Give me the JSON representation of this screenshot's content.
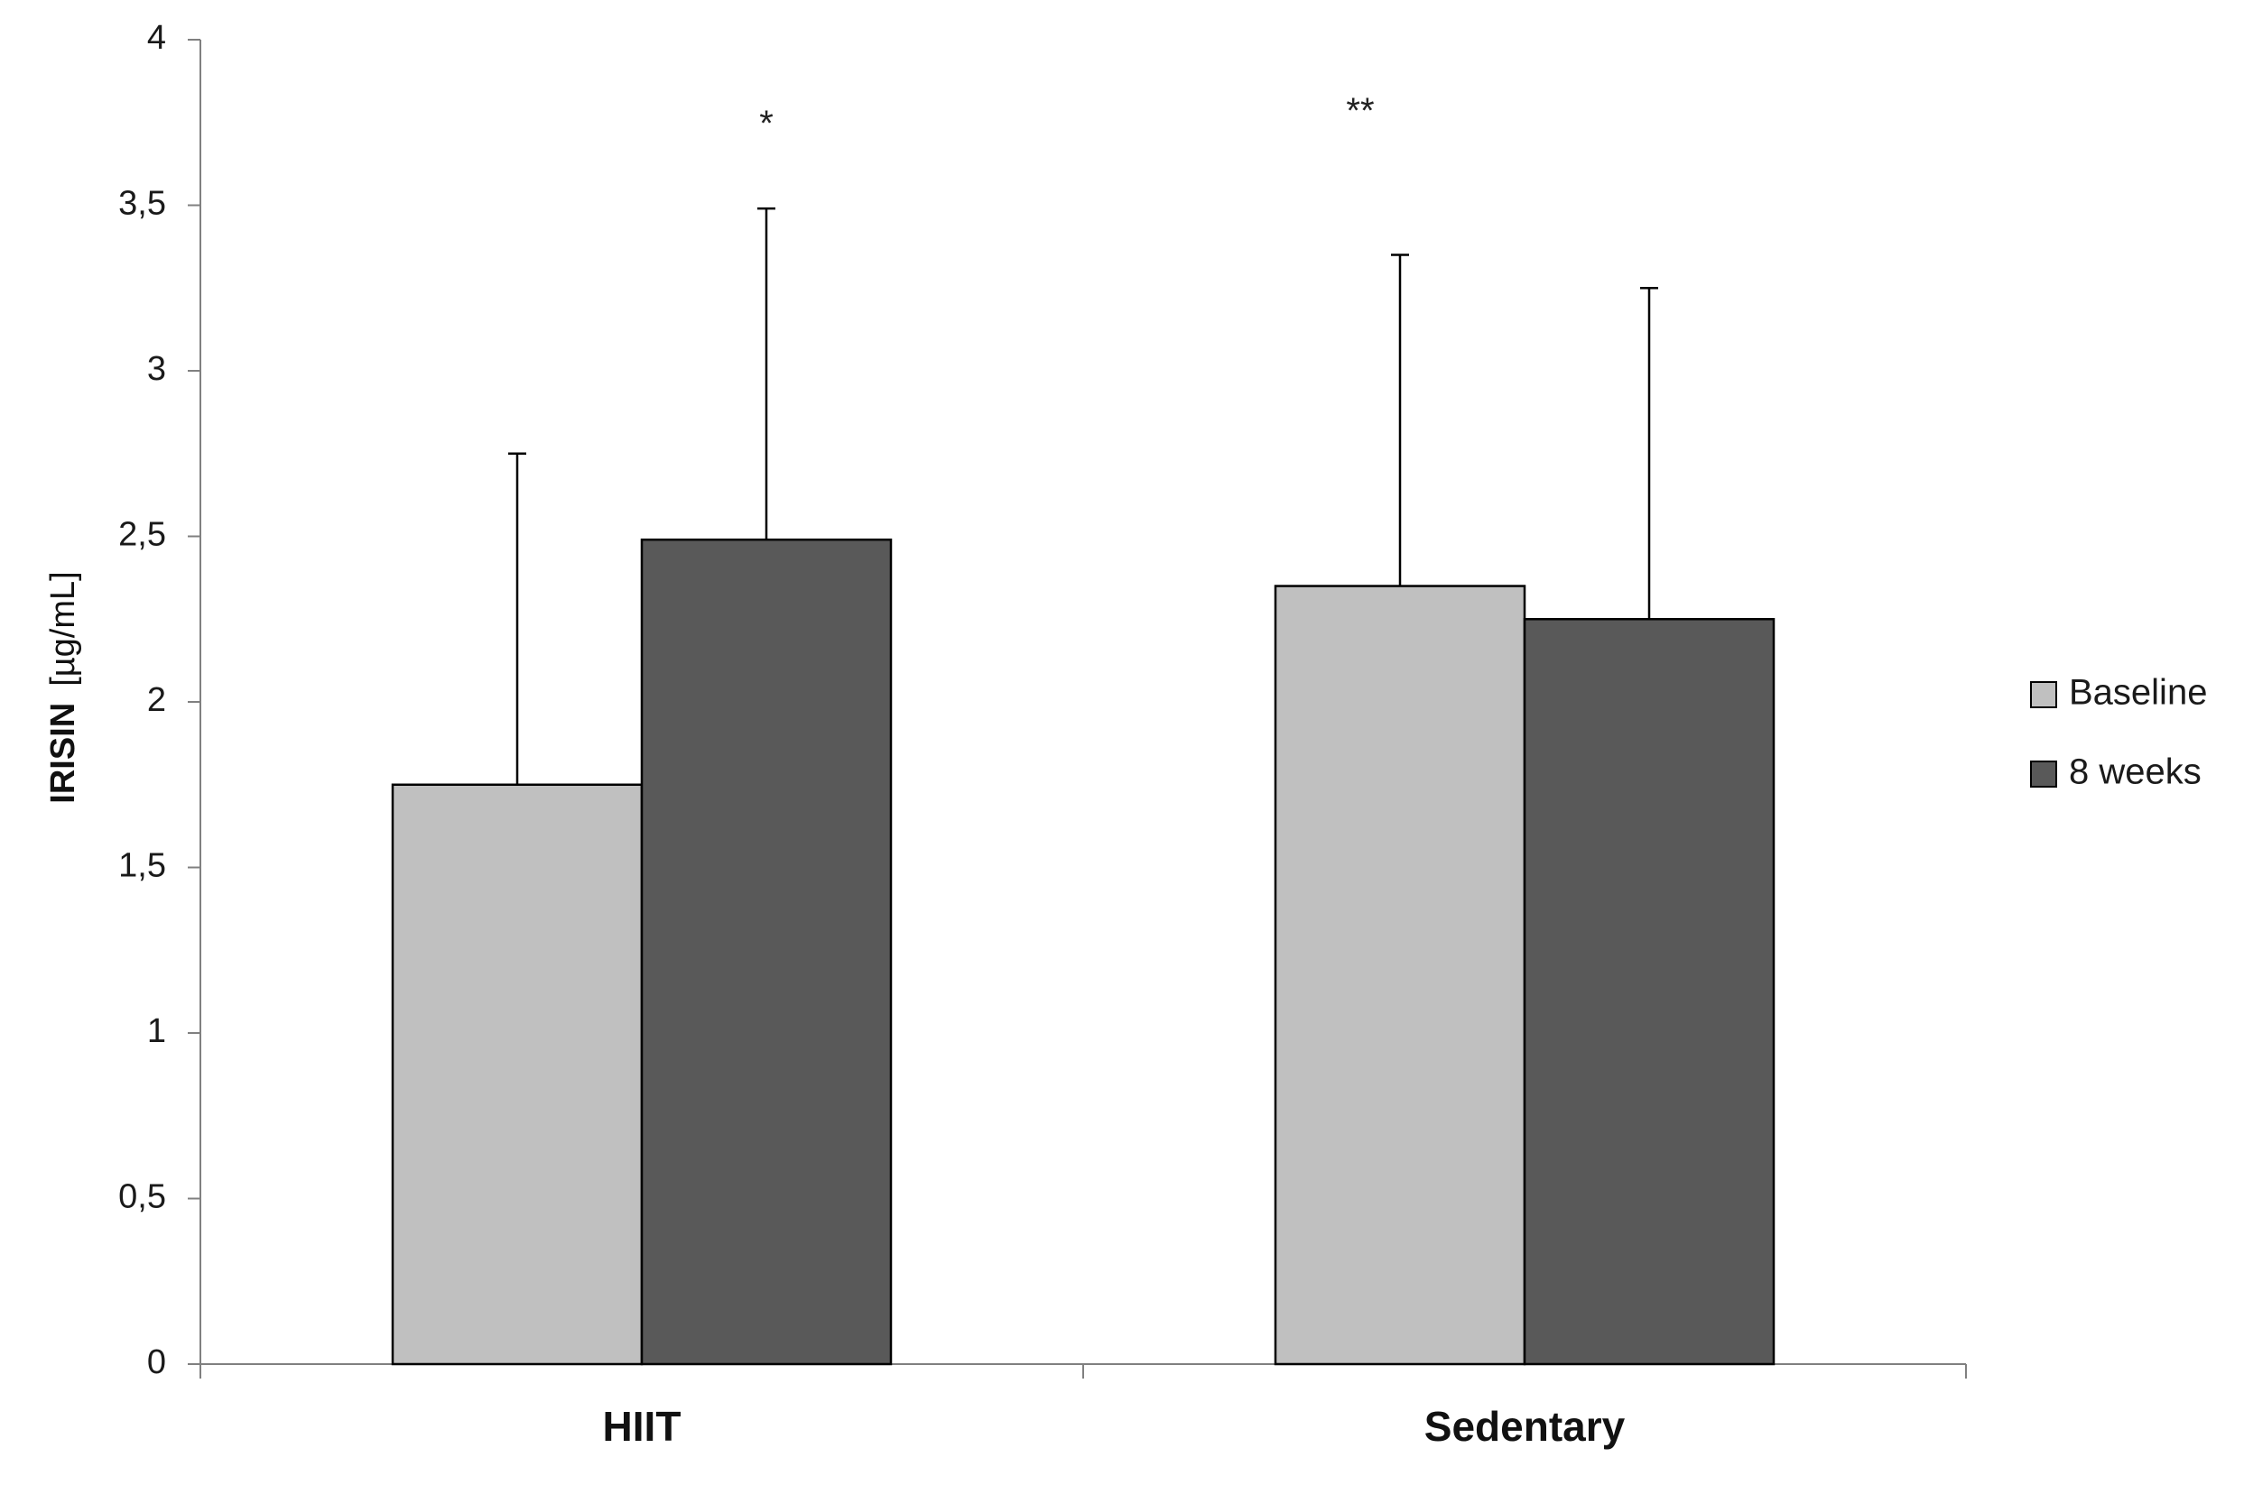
{
  "chart_data": {
    "type": "bar",
    "categories": [
      "HIIT",
      "Sedentary"
    ],
    "series": [
      {
        "name": "Baseline",
        "color": "#c0c0c0",
        "values": [
          1.75,
          2.35
        ],
        "error_upper": [
          2.75,
          3.35
        ]
      },
      {
        "name": "8 weeks",
        "color": "#595959",
        "values": [
          2.49,
          2.25
        ],
        "error_upper": [
          3.49,
          3.25
        ]
      }
    ],
    "ylabel": {
      "main": "IRISIN",
      "unit": "[µg/mL]"
    },
    "xlabel": "",
    "ylim": [
      0,
      4
    ],
    "yticks": [
      {
        "value": 0,
        "label": "0"
      },
      {
        "value": 0.5,
        "label": "0,5"
      },
      {
        "value": 1,
        "label": "1"
      },
      {
        "value": 1.5,
        "label": "1,5"
      },
      {
        "value": 2,
        "label": "2"
      },
      {
        "value": 2.5,
        "label": "2,5"
      },
      {
        "value": 3,
        "label": "3"
      },
      {
        "value": 3.5,
        "label": "3,5"
      },
      {
        "value": 4,
        "label": "4"
      }
    ],
    "annotations": [
      {
        "text": "*",
        "category": "HIIT",
        "series": "8 weeks"
      },
      {
        "text": "**",
        "category": "Sedentary",
        "series": "Baseline"
      }
    ],
    "grid": false,
    "legend_position": "right"
  }
}
